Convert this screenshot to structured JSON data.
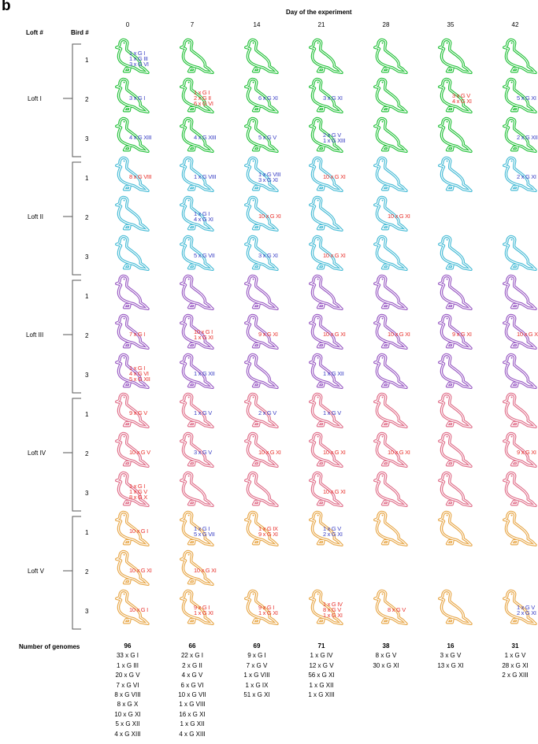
{
  "panel_label": "b",
  "header": {
    "days_title": "Day of the experiment",
    "loft_col": "Loft #",
    "bird_col": "Bird #",
    "days": [
      "0",
      "7",
      "14",
      "21",
      "28",
      "35",
      "42"
    ]
  },
  "colors": {
    "Loft I": "#26c23c",
    "Loft II": "#48bcd6",
    "Loft III": "#9a5cc4",
    "Loft IV": "#e06f8a",
    "Loft V": "#e8a84a",
    "annotation_red": "#e8322d",
    "annotation_blue": "#3a3fc4"
  },
  "lofts": [
    {
      "name": "Loft I",
      "birds": [
        "1",
        "2",
        "3"
      ]
    },
    {
      "name": "Loft II",
      "birds": [
        "1",
        "2",
        "3"
      ]
    },
    {
      "name": "Loft III",
      "birds": [
        "1",
        "2",
        "3"
      ]
    },
    {
      "name": "Loft IV",
      "birds": [
        "1",
        "2",
        "3"
      ]
    },
    {
      "name": "Loft V",
      "birds": [
        "1",
        "2",
        "3"
      ]
    }
  ],
  "grid": [
    [
      [
        {
          "d": 1,
          "c": "blue",
          "t": [
            "1 x G I",
            "1 x G III",
            "3 x G VI"
          ]
        },
        {
          "d": 1
        },
        {
          "d": 1
        },
        {
          "d": 1
        },
        {
          "d": 1
        },
        {
          "d": 1
        },
        {
          "d": 1
        }
      ],
      [
        {
          "d": 1,
          "c": "blue",
          "t": [
            "3 x G I"
          ]
        },
        {
          "d": 1,
          "c": "red",
          "t": [
            "1 x G I",
            "2 x G II",
            "6 x G VI"
          ]
        },
        {
          "d": 1,
          "c": "blue",
          "t": [
            "6 x G XI"
          ]
        },
        {
          "d": 1,
          "c": "blue",
          "t": [
            "3 x G XI"
          ]
        },
        {
          "d": 1
        },
        {
          "d": 1,
          "c": "red",
          "t": [
            "3 x G V",
            "4 x G XI"
          ]
        },
        {
          "d": 1,
          "c": "blue",
          "t": [
            "5 x G XI"
          ]
        }
      ],
      [
        {
          "d": 1,
          "c": "blue",
          "t": [
            "4 x G XIII"
          ]
        },
        {
          "d": 1,
          "c": "blue",
          "t": [
            "4 x G XIII"
          ]
        },
        {
          "d": 1,
          "c": "blue",
          "t": [
            "5 x G V"
          ]
        },
        {
          "d": 1,
          "c": "blue",
          "t": [
            "2 x G V",
            "1 x G XIII"
          ]
        },
        {
          "d": 1
        },
        {
          "d": 1
        },
        {
          "d": 1,
          "c": "blue",
          "t": [
            "2 x G XIII"
          ]
        }
      ]
    ],
    [
      [
        {
          "d": 1,
          "c": "red",
          "t": [
            "8 x G VIII"
          ]
        },
        {
          "d": 1,
          "c": "blue",
          "t": [
            "1 x G VIII"
          ]
        },
        {
          "d": 1,
          "c": "blue",
          "t": [
            "1 x G VIII",
            "3 x G XI"
          ]
        },
        {
          "d": 1,
          "c": "red",
          "t": [
            "10 x G XI"
          ]
        },
        {
          "d": 1
        },
        {
          "d": 1
        },
        {
          "d": 1,
          "c": "blue",
          "t": [
            "2 x G XI"
          ]
        }
      ],
      [
        {
          "d": 1
        },
        {
          "d": 1,
          "c": "blue",
          "t": [
            "1 x G I",
            "4 x G XI"
          ]
        },
        {
          "d": 1,
          "c": "red",
          "t": [
            "10 x G XI"
          ]
        },
        {
          "d": 1
        },
        {
          "d": 1,
          "c": "red",
          "t": [
            "10 x G XI"
          ]
        },
        {
          "d": 0
        },
        {
          "d": 0
        }
      ],
      [
        {
          "d": 1
        },
        {
          "d": 1,
          "c": "blue",
          "t": [
            "5 x G VII"
          ]
        },
        {
          "d": 1,
          "c": "blue",
          "t": [
            "3 x G XI"
          ]
        },
        {
          "d": 1,
          "c": "red",
          "t": [
            "10 x G XI"
          ]
        },
        {
          "d": 1
        },
        {
          "d": 1
        },
        {
          "d": 1
        }
      ]
    ],
    [
      [
        {
          "d": 1
        },
        {
          "d": 1
        },
        {
          "d": 1
        },
        {
          "d": 1
        },
        {
          "d": 1
        },
        {
          "d": 1
        },
        {
          "d": 1
        }
      ],
      [
        {
          "d": 1,
          "c": "red",
          "t": [
            "7 x G I"
          ]
        },
        {
          "d": 1,
          "c": "red",
          "t": [
            "10 x G I",
            "1 x G XI"
          ]
        },
        {
          "d": 1,
          "c": "red",
          "t": [
            "9 x G XI"
          ]
        },
        {
          "d": 1,
          "c": "red",
          "t": [
            "10 x G XI"
          ]
        },
        {
          "d": 1,
          "c": "red",
          "t": [
            "10 x G XI"
          ]
        },
        {
          "d": 1,
          "c": "red",
          "t": [
            "9 x G XI"
          ]
        },
        {
          "d": 1,
          "c": "red",
          "t": [
            "10 x G XI"
          ]
        }
      ],
      [
        {
          "d": 1,
          "c": "red",
          "t": [
            "1 x G I",
            "4 x G VI",
            "5 x G XII"
          ]
        },
        {
          "d": 1,
          "c": "blue",
          "t": [
            "1 x G XII"
          ]
        },
        {
          "d": 1
        },
        {
          "d": 1,
          "c": "blue",
          "t": [
            "1 x G XII"
          ]
        },
        {
          "d": 1
        },
        {
          "d": 1
        },
        {
          "d": 1
        }
      ]
    ],
    [
      [
        {
          "d": 1,
          "c": "red",
          "t": [
            "9 x G V"
          ]
        },
        {
          "d": 1,
          "c": "blue",
          "t": [
            "1 x G V"
          ]
        },
        {
          "d": 1,
          "c": "blue",
          "t": [
            "2 x G V"
          ]
        },
        {
          "d": 1,
          "c": "blue",
          "t": [
            "1 x G V"
          ]
        },
        {
          "d": 1
        },
        {
          "d": 1
        },
        {
          "d": 1
        }
      ],
      [
        {
          "d": 1,
          "c": "red",
          "t": [
            "10 x G V"
          ]
        },
        {
          "d": 1,
          "c": "blue",
          "t": [
            "3 x G V"
          ]
        },
        {
          "d": 1,
          "c": "red",
          "t": [
            "10 x G XI"
          ]
        },
        {
          "d": 1,
          "c": "red",
          "t": [
            "10 x G XI"
          ]
        },
        {
          "d": 1,
          "c": "red",
          "t": [
            "10 x G XI"
          ]
        },
        {
          "d": 1
        },
        {
          "d": 1,
          "c": "red",
          "t": [
            "9 x G XI"
          ]
        }
      ],
      [
        {
          "d": 1,
          "c": "red",
          "t": [
            "1 x G I",
            "1 x G V",
            "8 x G X"
          ]
        },
        {
          "d": 1
        },
        {
          "d": 1
        },
        {
          "d": 1,
          "c": "red",
          "t": [
            "10 x G XI"
          ]
        },
        {
          "d": 1
        },
        {
          "d": 1
        },
        {
          "d": 1
        }
      ]
    ],
    [
      [
        {
          "d": 1,
          "c": "red",
          "t": [
            "10 x G I"
          ]
        },
        {
          "d": 1,
          "c": "blue",
          "t": [
            "1 x G I",
            "5 x G VII"
          ]
        },
        {
          "d": 1,
          "c": "red",
          "t": [
            "1 x G IX",
            "9 x G XI"
          ]
        },
        {
          "d": 1,
          "c": "blue",
          "t": [
            "1 x G V",
            "2 x G XI"
          ]
        },
        {
          "d": 1
        },
        {
          "d": 1
        },
        {
          "d": 1
        }
      ],
      [
        {
          "d": 1,
          "c": "red",
          "t": [
            "10 x G XI"
          ]
        },
        {
          "d": 1,
          "c": "red",
          "t": [
            "10 x G XI"
          ]
        },
        {
          "d": 0
        },
        {
          "d": 0
        },
        {
          "d": 0
        },
        {
          "d": 0
        },
        {
          "d": 0
        }
      ],
      [
        {
          "d": 1,
          "c": "red",
          "t": [
            "10 x G I"
          ]
        },
        {
          "d": 1,
          "c": "red",
          "t": [
            "9 x G I",
            "1 x G XI"
          ]
        },
        {
          "d": 1,
          "c": "red",
          "t": [
            "9 x G I",
            "1 x G XI"
          ]
        },
        {
          "d": 1,
          "c": "red",
          "t": [
            "1 x G IV",
            "8 x G V",
            "1 x G XI"
          ]
        },
        {
          "d": 1,
          "c": "red",
          "t": [
            "8 x G V"
          ]
        },
        {
          "d": 1
        },
        {
          "d": 1,
          "c": "blue",
          "t": [
            "1 x G V",
            "2 x G XI"
          ]
        }
      ]
    ]
  ],
  "totals": {
    "label": "Number of genomes",
    "columns": [
      {
        "n": "96",
        "g": [
          "33 x G I",
          "1 x G III",
          "20 x G V",
          "7 x G VI",
          "8 x G VIII",
          "8 x G X",
          "10 x G XI",
          "5 x G XII",
          "4 x G XIII"
        ]
      },
      {
        "n": "66",
        "g": [
          "22 x G I",
          "2 x G II",
          "4 x G V",
          "6 x G VI",
          "10 x G VII",
          "1 x G VIII",
          "16 x G XI",
          "1 x G XII",
          "4 x G XIII"
        ]
      },
      {
        "n": "69",
        "g": [
          "9 x G I",
          "7 x G V",
          "1 x G VIII",
          "1 x G IX",
          "51 x G XI"
        ]
      },
      {
        "n": "71",
        "g": [
          "1 x G IV",
          "12 x G V",
          "56 x G XI",
          "1 x G XII",
          "1 x G XIII"
        ]
      },
      {
        "n": "38",
        "g": [
          "8 x G V",
          "30 x G XI"
        ]
      },
      {
        "n": "16",
        "g": [
          "3 x G V",
          "13 x G XI"
        ]
      },
      {
        "n": "31",
        "g": [
          "1 x G V",
          "28 x G XI",
          "2 x G XIII"
        ]
      }
    ]
  }
}
